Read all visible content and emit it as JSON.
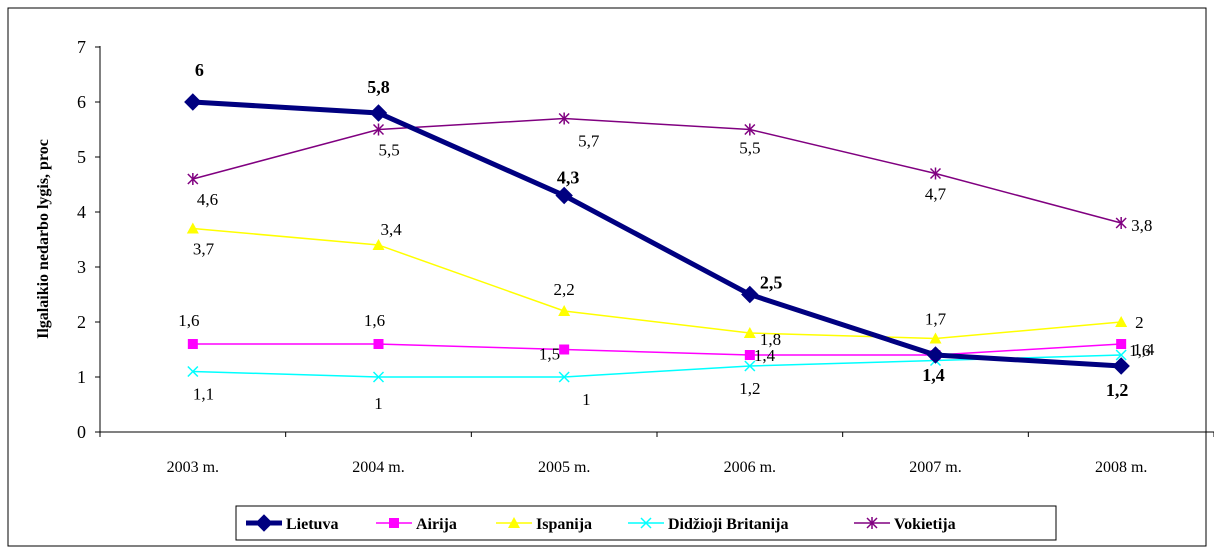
{
  "chart_data": {
    "type": "line",
    "title": "",
    "xlabel": "",
    "ylabel": "Ilgalaikio nedarbo lygis, proc",
    "categories": [
      "2003 m.",
      "2004 m.",
      "2005 m.",
      "2006 m.",
      "2007 m.",
      "2008 m."
    ],
    "ylim": [
      0,
      7
    ],
    "yticks": [
      "0",
      "1",
      "2",
      "3",
      "4",
      "5",
      "6",
      "7"
    ],
    "grid": false,
    "legend_position": "bottom",
    "series": [
      {
        "name": "Lietuva",
        "color": "#000080",
        "marker": "diamond",
        "values": [
          6,
          5.8,
          4.3,
          2.5,
          1.4,
          1.2
        ],
        "labels": [
          "6",
          "5,8",
          "4,3",
          "2,5",
          "1,4",
          "1,2"
        ]
      },
      {
        "name": "Airija",
        "color": "#ff00ff",
        "marker": "square",
        "values": [
          1.6,
          1.6,
          1.5,
          1.4,
          1.4,
          1.6
        ],
        "labels": [
          "1,6",
          "1,6",
          "1,5",
          "1,4",
          "",
          "1,6"
        ]
      },
      {
        "name": "Ispanija",
        "color": "#ffff00",
        "marker": "triangle",
        "values": [
          3.7,
          3.4,
          2.2,
          1.8,
          1.7,
          2
        ],
        "labels": [
          "3,7",
          "3,4",
          "2,2",
          "1,8",
          "1,7",
          "2"
        ]
      },
      {
        "name": "Didžioji Britanija",
        "color": "#00ffff",
        "marker": "x",
        "values": [
          1.1,
          1,
          1,
          1.2,
          1.3,
          1.4
        ],
        "labels": [
          "1,1",
          "1",
          "1",
          "1,2",
          "",
          "1,4"
        ]
      },
      {
        "name": "Vokietija",
        "color": "#800080",
        "marker": "star",
        "values": [
          4.6,
          5.5,
          5.7,
          5.5,
          4.7,
          3.8
        ],
        "labels": [
          "4,6",
          "5,5",
          "5,7",
          "5,5",
          "4,7",
          "3,8"
        ]
      }
    ]
  }
}
